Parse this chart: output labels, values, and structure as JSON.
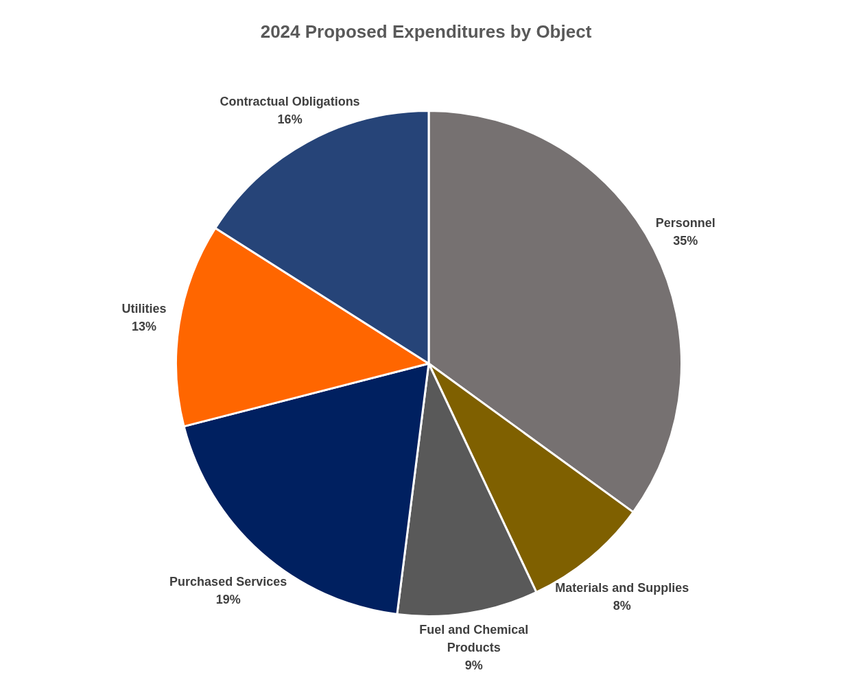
{
  "chart_data": {
    "type": "pie",
    "title": "2024 Proposed Expenditures by Object",
    "categories": [
      "Personnel",
      "Materials and Supplies",
      "Fuel and Chemical Products",
      "Purchased Services",
      "Utilities",
      "Contractual Obligations"
    ],
    "values": [
      35,
      8,
      9,
      19,
      13,
      16
    ],
    "colors": [
      "#767171",
      "#7f6000",
      "#595959",
      "#002060",
      "#ff6600",
      "#264478"
    ],
    "value_labels": [
      "35%",
      "8%",
      "9%",
      "19%",
      "13%",
      "16%"
    ],
    "legend": false
  }
}
